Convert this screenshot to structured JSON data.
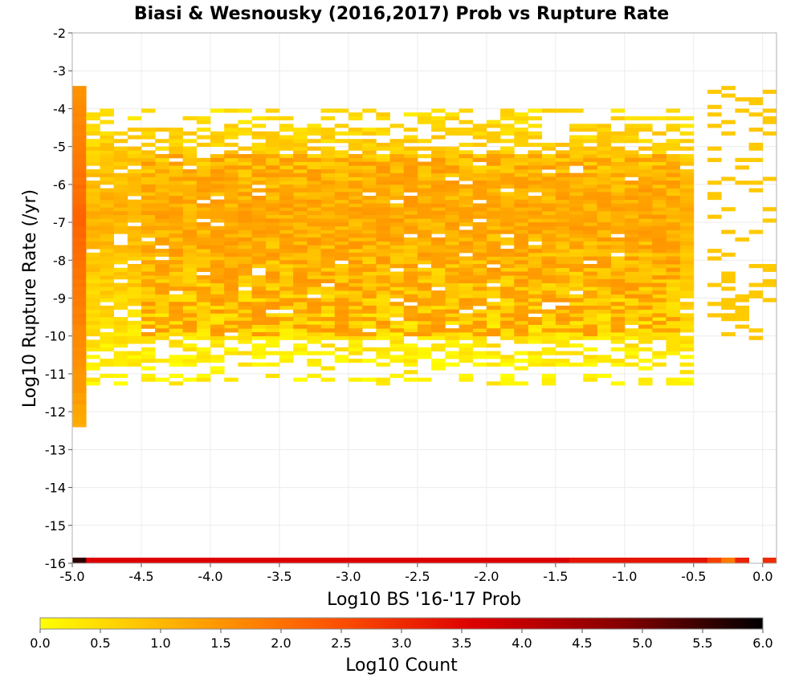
{
  "chart_data": {
    "type": "heatmap",
    "title": "Biasi & Wesnousky (2016,2017) Prob vs Rupture Rate",
    "xlabel": "Log10 BS '16-'17 Prob",
    "ylabel": "Log10 Rupture Rate (/yr)",
    "xlim": [
      -5.0,
      0.1
    ],
    "ylim": [
      -16,
      -2
    ],
    "x_ticks": [
      "-5.0",
      "-4.5",
      "-4.0",
      "-3.5",
      "-3.0",
      "-2.5",
      "-2.0",
      "-1.5",
      "-1.0",
      "-0.5",
      "0.0"
    ],
    "y_ticks": [
      "-2",
      "-3",
      "-4",
      "-5",
      "-6",
      "-7",
      "-8",
      "-9",
      "-10",
      "-11",
      "-12",
      "-13",
      "-14",
      "-15",
      "-16"
    ],
    "bin_width": 0.1,
    "colorbar": {
      "label": "Log10 Count",
      "min": 0.0,
      "max": 6.0,
      "ticks": [
        "0.0",
        "0.5",
        "1.0",
        "1.5",
        "2.0",
        "2.5",
        "3.0",
        "3.5",
        "4.0",
        "4.5",
        "5.0",
        "5.5",
        "6.0"
      ],
      "colors": [
        "#ffff00",
        "#ffaa00",
        "#ff5500",
        "#dd0000",
        "#880000",
        "#000000"
      ]
    },
    "grid": true,
    "cell_groups": [
      {
        "x": [
          -5.0,
          -4.9
        ],
        "y": [
          -12.4,
          -3.4
        ],
        "log10_count": 2.2,
        "note": "first column, peak near -7"
      },
      {
        "x": [
          -4.9,
          -0.5
        ],
        "y": [
          -11.3,
          -4.0
        ],
        "log10_count": 1.0
      },
      {
        "x": [
          -4.5,
          -0.6
        ],
        "y": [
          -10.0,
          -5.2
        ],
        "log10_count": 1.2
      },
      {
        "x": [
          -0.4,
          0.1
        ],
        "y": [
          -10.1,
          -3.4
        ],
        "log10_count": 0.4
      }
    ],
    "zero_rate_row": {
      "y": -16,
      "values": [
        {
          "x": -5.0,
          "log10_count": 5.6
        },
        {
          "x_range": [
            -4.9,
            -1.4
          ],
          "log10_count": 3.6
        },
        {
          "x_range": [
            -1.4,
            -0.4
          ],
          "log10_count": 3.3
        },
        {
          "x": -0.4,
          "log10_count": 2.7
        },
        {
          "x": -0.3,
          "log10_count": 1.9
        },
        {
          "x": -0.2,
          "log10_count": 3.1
        },
        {
          "x": 0.0,
          "log10_count": 3.0
        }
      ]
    }
  }
}
